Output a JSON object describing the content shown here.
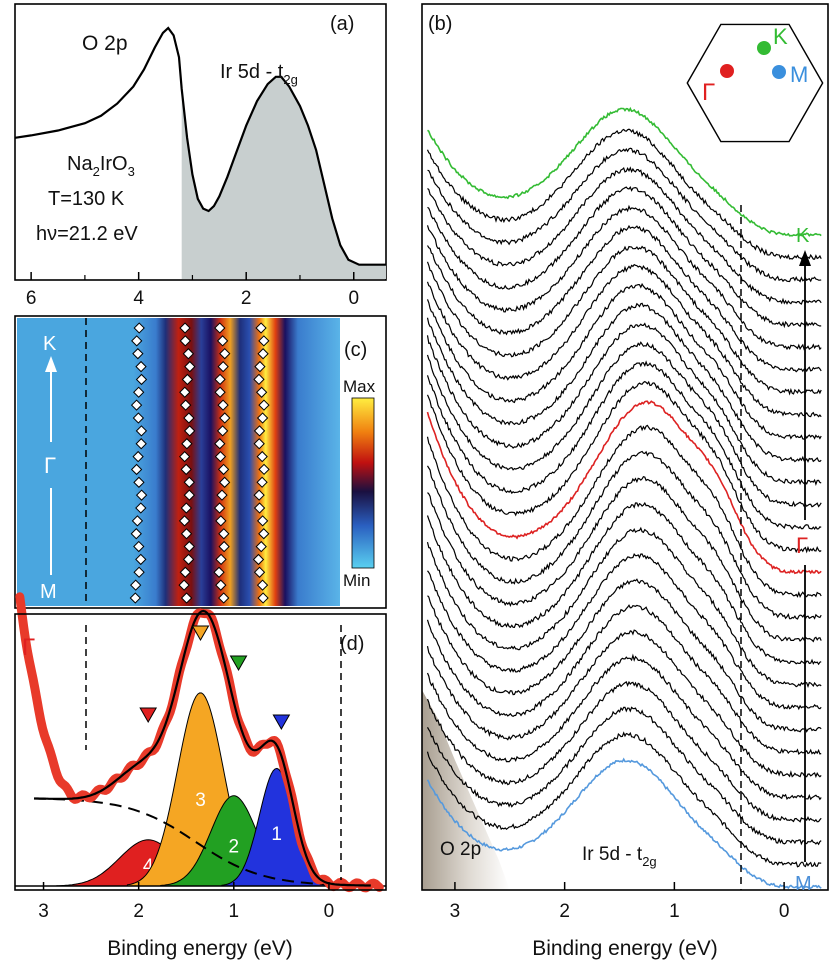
{
  "chart_data": [
    {
      "id": "a",
      "type": "line",
      "panel_label": "(a)",
      "xlabel": "",
      "xlim": [
        6.3,
        -0.6
      ],
      "xticks": [
        6,
        4,
        2,
        0
      ],
      "peak_labels": {
        "o2p": "O 2p",
        "ir5d_main": "Ir 5d - t",
        "ir5d_sub": "2g"
      },
      "sample": {
        "name": "Na",
        "name_sub": "2",
        "name_rest": "IrO",
        "name_sub2": "3",
        "temp": "T=130 K",
        "photon": "hν=21.2 eV"
      },
      "shade_from": 3.2,
      "x": [
        6.3,
        6.0,
        5.5,
        5.0,
        4.7,
        4.4,
        4.1,
        3.9,
        3.7,
        3.55,
        3.45,
        3.35,
        3.25,
        3.2,
        3.1,
        3.0,
        2.9,
        2.8,
        2.7,
        2.6,
        2.5,
        2.35,
        2.2,
        2.0,
        1.8,
        1.6,
        1.45,
        1.35,
        1.2,
        1.0,
        0.85,
        0.7,
        0.55,
        0.4,
        0.25,
        0.1,
        -0.1,
        -0.3,
        -0.6
      ],
      "y": [
        0.55,
        0.56,
        0.58,
        0.61,
        0.64,
        0.69,
        0.76,
        0.83,
        0.92,
        0.98,
        1.0,
        0.97,
        0.88,
        0.75,
        0.55,
        0.4,
        0.3,
        0.26,
        0.25,
        0.27,
        0.31,
        0.39,
        0.48,
        0.6,
        0.7,
        0.77,
        0.8,
        0.8,
        0.76,
        0.68,
        0.6,
        0.5,
        0.36,
        0.22,
        0.11,
        0.05,
        0.03,
        0.03,
        0.03
      ]
    },
    {
      "id": "b",
      "type": "line",
      "panel_label": "(b)",
      "xlabel": "Binding energy (eV)",
      "xlim": [
        3.3,
        -0.4
      ],
      "xticks": [
        3,
        2,
        1,
        0
      ],
      "n_curves": 30,
      "highlight": [
        {
          "index": 0,
          "color": "#5599dd",
          "label": "M"
        },
        {
          "index": 14,
          "color": "#dd2222",
          "label": "Γ"
        },
        {
          "index": 29,
          "color": "#33bb33",
          "label": "K"
        }
      ],
      "region_labels": {
        "o2p": "O 2p",
        "ir5d_main": "Ir 5d - t",
        "ir5d_sub": "2g"
      },
      "inset_bz": {
        "gamma": "Γ",
        "k": "K",
        "m": "M"
      }
    },
    {
      "id": "c",
      "type": "heatmap",
      "panel_label": "(c)",
      "xlim": [
        3.3,
        -0.4
      ],
      "path_labels": {
        "top": "K",
        "mid": "Γ",
        "bottom": "M"
      },
      "colorbar": {
        "max": "Max",
        "min": "Min"
      },
      "dashed_line_x": 2.6,
      "band_centers": [
        1.9,
        1.35,
        0.95,
        0.5
      ]
    },
    {
      "id": "d",
      "type": "area",
      "panel_label": "(d)",
      "xlabel": "Binding energy (eV)",
      "xlim": [
        3.3,
        -0.6
      ],
      "xticks": [
        3,
        2,
        1,
        0
      ],
      "gamma_label": "Γ",
      "dashed_lines_x": [
        2.6,
        0
      ],
      "components": [
        {
          "label": "1",
          "center": 0.55,
          "color": "#2233dd",
          "height": 0.56,
          "width": 0.18
        },
        {
          "label": "2",
          "center": 1.0,
          "color": "#22a022",
          "height": 0.43,
          "width": 0.24
        },
        {
          "label": "3",
          "center": 1.35,
          "color": "#f5a623",
          "height": 0.92,
          "width": 0.24
        },
        {
          "label": "4",
          "center": 1.9,
          "color": "#e02020",
          "height": 0.22,
          "width": 0.3
        }
      ],
      "markers": [
        {
          "x": 1.9,
          "color": "#e02020"
        },
        {
          "x": 1.35,
          "color": "#f5a623"
        },
        {
          "x": 0.95,
          "color": "#22a022"
        },
        {
          "x": 0.5,
          "color": "#2233dd"
        }
      ]
    }
  ]
}
